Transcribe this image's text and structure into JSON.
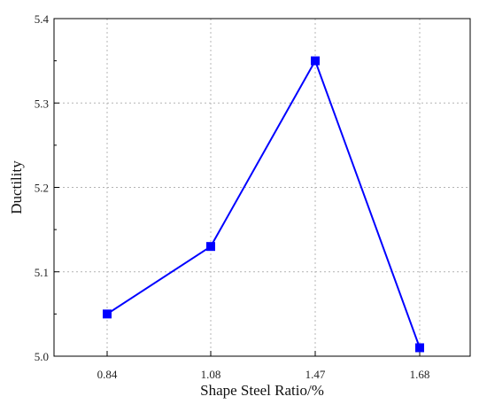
{
  "chart_data": {
    "type": "line",
    "categories": [
      "0.84",
      "1.08",
      "1.47",
      "1.68"
    ],
    "series": [
      {
        "values": [
          5.05,
          5.13,
          5.35,
          5.01
        ],
        "color": "#0000ff",
        "marker": "square"
      }
    ],
    "xlabel": "Shape Steel Ratio/%",
    "ylabel": "Ductility",
    "ylim": [
      5.0,
      5.4
    ],
    "yticks": [
      "5.0",
      "5.1",
      "5.2",
      "5.3",
      "5.4"
    ],
    "grid": true
  }
}
